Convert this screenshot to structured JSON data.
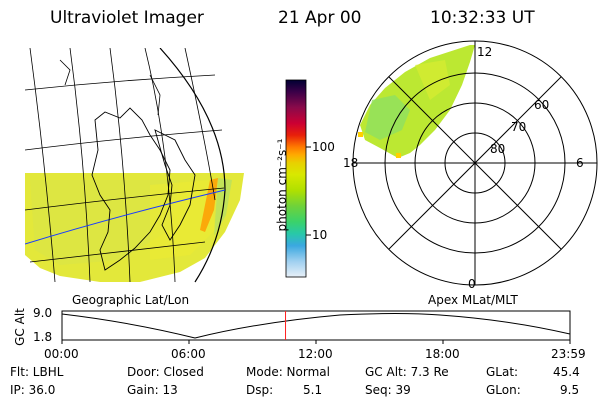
{
  "header": {
    "instrument": "Ultraviolet Imager",
    "date": "21 Apr 00",
    "time": "10:32:33 UT"
  },
  "colorbar": {
    "unit_label": "photon cm⁻²s⁻¹",
    "ticks": [
      "100",
      "10"
    ],
    "colors": [
      "#000033",
      "#3a0048",
      "#8a0a4a",
      "#cc0033",
      "#e8200a",
      "#ff7a00",
      "#ffaa00",
      "#e8d000",
      "#d8e800",
      "#b0e000",
      "#6fd23a",
      "#3ad26a",
      "#28c8a8",
      "#3aa8e0",
      "#9fd0f0",
      "#e8f0f8"
    ]
  },
  "polar": {
    "mlt_labels": {
      "top": "12",
      "bottom": "0",
      "left": "18",
      "right": "6"
    },
    "lat_labels": [
      "60",
      "70",
      "80"
    ]
  },
  "orbit": {
    "left_label": "Geographic Lat/Lon",
    "right_label": "Apex MLat/MLT",
    "axis_label": "GC Alt",
    "y_ticks": [
      "9.0",
      "1.8"
    ],
    "x_ticks": [
      "00:00",
      "06:00",
      "12:00",
      "18:00",
      "23:59"
    ],
    "current_fraction": 0.44
  },
  "status": {
    "flt": "Flt: LBHL",
    "ip": "IP: 36.0",
    "door": "Door: Closed",
    "gain": "Gain: 13",
    "mode": "Mode: Normal",
    "dsp_label": "Dsp:",
    "dsp_value": "5.1",
    "gc_alt": "GC Alt: 7.3 Re",
    "seq": "Seq: 39",
    "glat_label": "GLat:",
    "glat_value": "45.4",
    "glon_label": "GLon:",
    "glon_value": "9.5"
  }
}
